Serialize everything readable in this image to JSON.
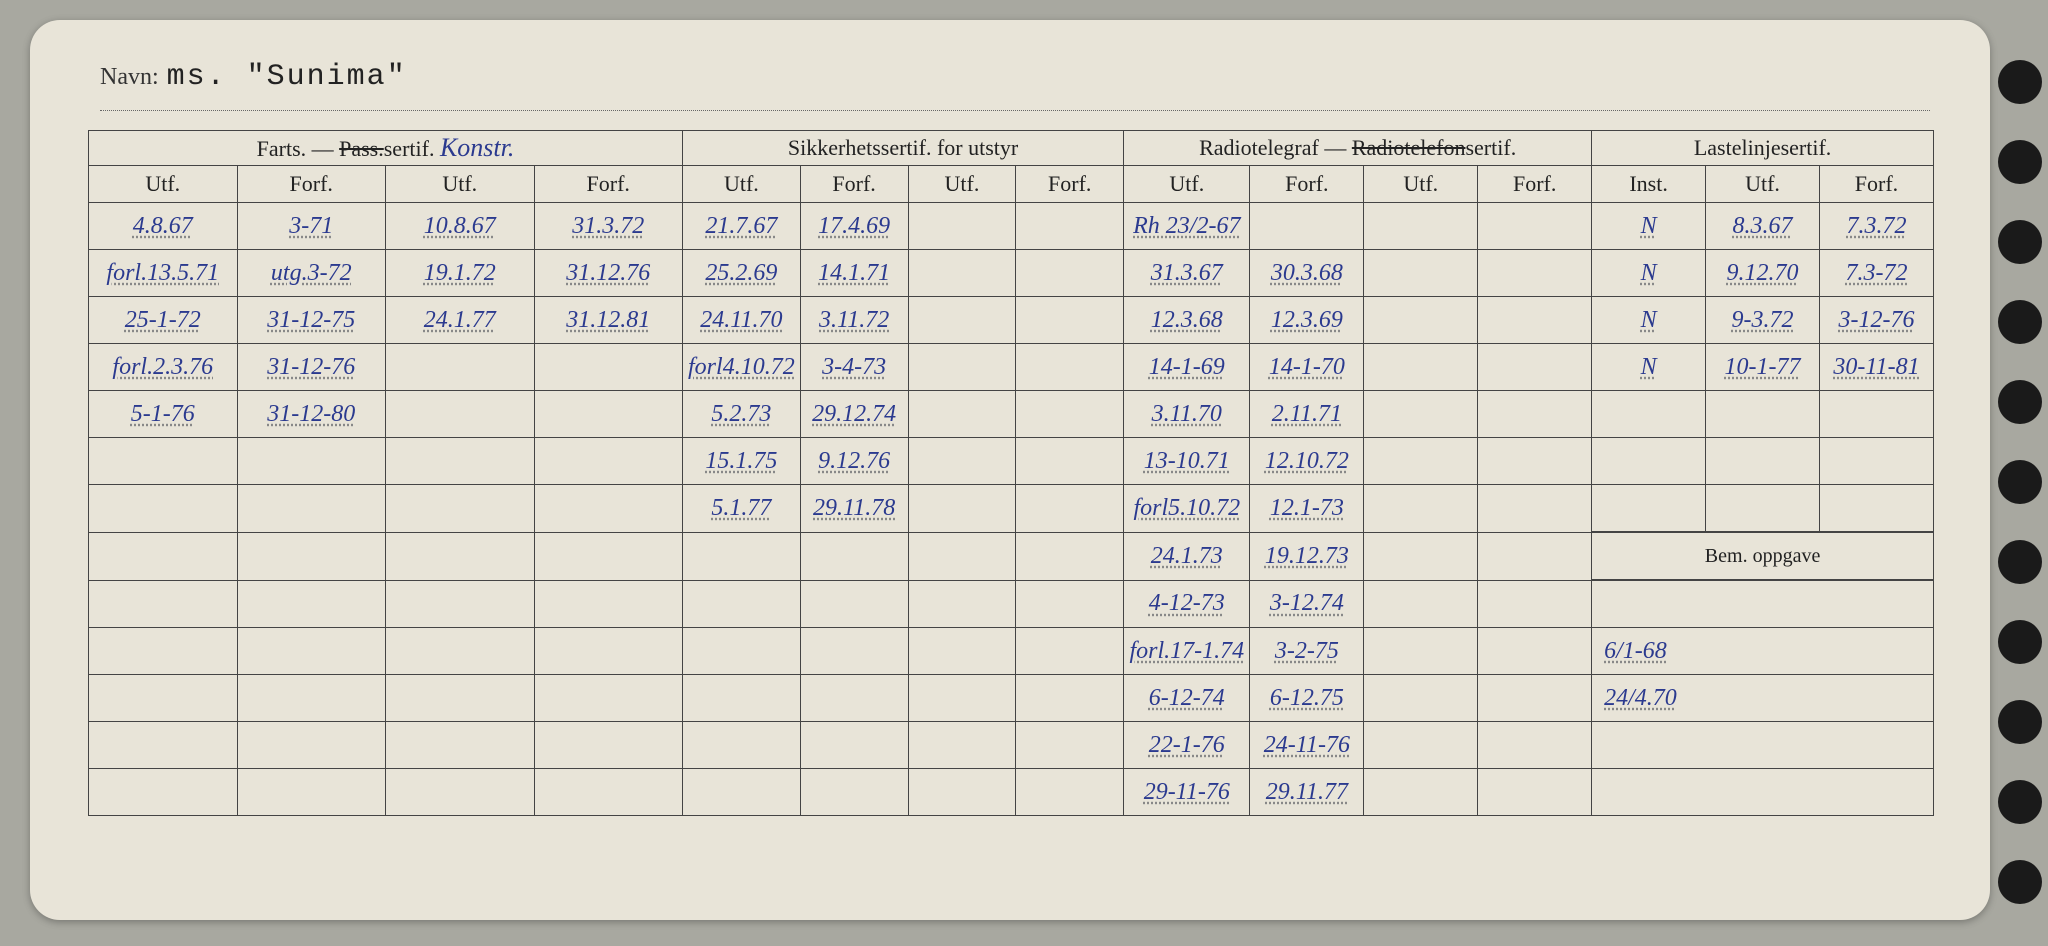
{
  "navn_label": "Navn:",
  "navn_value": "ms. \"Sunima\"",
  "headers": {
    "group_farts": "Farts. — Pass.sertif.",
    "farts_anno": "Konstr.",
    "group_sik": "Sikkerhetssertif. for utstyr",
    "group_radio": "Radiotelegraf — Radiotelefonsertif.",
    "radio_strike": "Radiotelefon",
    "group_last": "Lastelinjesertif.",
    "utf": "Utf.",
    "forf": "Forf.",
    "inst": "Inst.",
    "bem": "Bem. oppgave"
  },
  "rows": [
    {
      "f_u1": "4.8.67",
      "f_f1": "3-71",
      "f_u2": "10.8.67",
      "f_f2": "31.3.72",
      "s_u1": "21.7.67",
      "s_f1": "17.4.69",
      "s_u2": "",
      "s_f2": "",
      "r_u1": "Rh 23/2-67",
      "r_f1": "",
      "r_u2": "",
      "r_f2": "",
      "l_i": "N",
      "l_u": "8.3.67",
      "l_f": "7.3.72"
    },
    {
      "f_u1": "forl.13.5.71",
      "f_f1": "utg.3-72",
      "f_u2": "19.1.72",
      "f_f2": "31.12.76",
      "s_u1": "25.2.69",
      "s_f1": "14.1.71",
      "s_u2": "",
      "s_f2": "",
      "r_u1": "31.3.67",
      "r_f1": "30.3.68",
      "r_u2": "",
      "r_f2": "",
      "l_i": "N",
      "l_u": "9.12.70",
      "l_f": "7.3-72"
    },
    {
      "f_u1": "25-1-72",
      "f_f1": "31-12-75",
      "f_u2": "24.1.77",
      "f_f2": "31.12.81",
      "s_u1": "24.11.70",
      "s_f1": "3.11.72",
      "s_u2": "",
      "s_f2": "",
      "r_u1": "12.3.68",
      "r_f1": "12.3.69",
      "r_u2": "",
      "r_f2": "",
      "l_i": "N",
      "l_u": "9-3.72",
      "l_f": "3-12-76"
    },
    {
      "f_u1": "forl.2.3.76",
      "f_f1": "31-12-76",
      "f_u2": "",
      "f_f2": "",
      "s_u1": "forl4.10.72",
      "s_f1": "3-4-73",
      "s_u2": "",
      "s_f2": "",
      "r_u1": "14-1-69",
      "r_f1": "14-1-70",
      "r_u2": "",
      "r_f2": "",
      "l_i": "N",
      "l_u": "10-1-77",
      "l_f": "30-11-81"
    },
    {
      "f_u1": "5-1-76",
      "f_f1": "31-12-80",
      "f_u2": "",
      "f_f2": "",
      "s_u1": "5.2.73",
      "s_f1": "29.12.74",
      "s_u2": "",
      "s_f2": "",
      "r_u1": "3.11.70",
      "r_f1": "2.11.71",
      "r_u2": "",
      "r_f2": "",
      "l_i": "",
      "l_u": "",
      "l_f": ""
    },
    {
      "f_u1": "",
      "f_f1": "",
      "f_u2": "",
      "f_f2": "",
      "s_u1": "15.1.75",
      "s_f1": "9.12.76",
      "s_u2": "",
      "s_f2": "",
      "r_u1": "13-10.71",
      "r_f1": "12.10.72",
      "r_u2": "",
      "r_f2": "",
      "l_i": "",
      "l_u": "",
      "l_f": ""
    },
    {
      "f_u1": "",
      "f_f1": "",
      "f_u2": "",
      "f_f2": "",
      "s_u1": "5.1.77",
      "s_f1": "29.11.78",
      "s_u2": "",
      "s_f2": "",
      "r_u1": "forl5.10.72",
      "r_f1": "12.1-73",
      "r_u2": "",
      "r_f2": "",
      "l_i": "",
      "l_u": "",
      "l_f": ""
    },
    {
      "f_u1": "",
      "f_f1": "",
      "f_u2": "",
      "f_f2": "",
      "s_u1": "",
      "s_f1": "",
      "s_u2": "",
      "s_f2": "",
      "r_u1": "24.1.73",
      "r_f1": "19.12.73",
      "r_u2": "",
      "r_f2": "",
      "bem_header": true
    },
    {
      "f_u1": "",
      "f_f1": "",
      "f_u2": "",
      "f_f2": "",
      "s_u1": "",
      "s_f1": "",
      "s_u2": "",
      "s_f2": "",
      "r_u1": "4-12-73",
      "r_f1": "3-12.74",
      "r_u2": "",
      "r_f2": "",
      "bem": ""
    },
    {
      "f_u1": "",
      "f_f1": "",
      "f_u2": "",
      "f_f2": "",
      "s_u1": "",
      "s_f1": "",
      "s_u2": "",
      "s_f2": "",
      "r_u1": "forl.17-1.74",
      "r_f1": "3-2-75",
      "r_u2": "",
      "r_f2": "",
      "bem": "6/1-68"
    },
    {
      "f_u1": "",
      "f_f1": "",
      "f_u2": "",
      "f_f2": "",
      "s_u1": "",
      "s_f1": "",
      "s_u2": "",
      "s_f2": "",
      "r_u1": "6-12-74",
      "r_f1": "6-12.75",
      "r_u2": "",
      "r_f2": "",
      "bem": "24/4.70"
    },
    {
      "f_u1": "",
      "f_f1": "",
      "f_u2": "",
      "f_f2": "",
      "s_u1": "",
      "s_f1": "",
      "s_u2": "",
      "s_f2": "",
      "r_u1": "22-1-76",
      "r_f1": "24-11-76",
      "r_u2": "",
      "r_f2": "",
      "bem": ""
    },
    {
      "f_u1": "",
      "f_f1": "",
      "f_u2": "",
      "f_f2": "",
      "s_u1": "",
      "s_f1": "",
      "s_u2": "",
      "s_f2": "",
      "r_u1": "29-11-76",
      "r_f1": "29.11.77",
      "r_u2": "",
      "r_f2": "",
      "bem": ""
    }
  ],
  "colors": {
    "card_bg": "#e8e4d8",
    "ink": "#2b3a8f",
    "print": "#222",
    "border": "#444"
  }
}
